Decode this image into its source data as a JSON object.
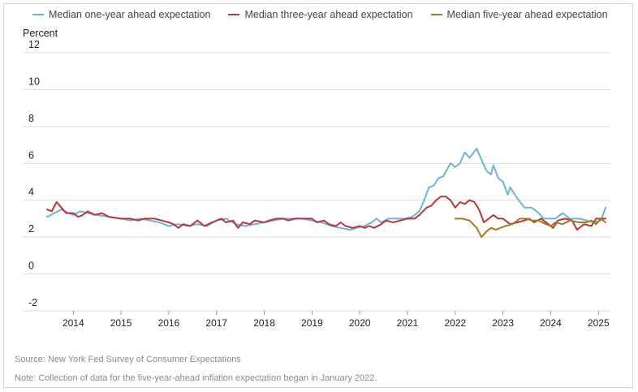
{
  "legend": {
    "one_year": "Median one-year ahead expectation",
    "three_year": "Median three-year ahead expectation",
    "five_year": "Median five-year ahead expectation"
  },
  "colors": {
    "one_year": "#6eb2d9",
    "three_year": "#b5383a",
    "five_year": "#a8781e",
    "grid": "#d9d9d9"
  },
  "footer": {
    "source": "Source: New York Fed Survey of Consumer Expectations",
    "note": "Note: Collection of data for the five-year-ahead inflation expectation began in January 2022."
  },
  "chart_data": {
    "type": "line",
    "ylabel": "Percent",
    "ylim": [
      -2,
      12
    ],
    "yticks": [
      -2,
      0,
      2,
      4,
      6,
      8,
      10,
      12
    ],
    "xticks": [
      2014,
      2015,
      2016,
      2017,
      2018,
      2019,
      2020,
      2021,
      2022,
      2023,
      2024,
      2025
    ],
    "xlim": [
      2013.4,
      2025.25
    ],
    "grid": true,
    "legend_position": "top",
    "series": [
      {
        "key": "one_year",
        "name": "Median one-year ahead expectation",
        "points": [
          [
            2013.45,
            3.1
          ],
          [
            2013.6,
            3.3
          ],
          [
            2013.75,
            3.5
          ],
          [
            2013.9,
            3.3
          ],
          [
            2014.0,
            3.2
          ],
          [
            2014.15,
            3.4
          ],
          [
            2014.3,
            3.3
          ],
          [
            2014.5,
            3.2
          ],
          [
            2014.75,
            3.1
          ],
          [
            2015.0,
            3.0
          ],
          [
            2015.2,
            2.9
          ],
          [
            2015.4,
            3.0
          ],
          [
            2015.6,
            2.9
          ],
          [
            2015.8,
            2.8
          ],
          [
            2016.0,
            2.6
          ],
          [
            2016.2,
            2.7
          ],
          [
            2016.4,
            2.6
          ],
          [
            2016.6,
            2.7
          ],
          [
            2016.8,
            2.6
          ],
          [
            2017.0,
            2.9
          ],
          [
            2017.2,
            3.0
          ],
          [
            2017.4,
            2.7
          ],
          [
            2017.6,
            2.6
          ],
          [
            2017.8,
            2.7
          ],
          [
            2018.0,
            2.8
          ],
          [
            2018.2,
            2.9
          ],
          [
            2018.4,
            3.0
          ],
          [
            2018.6,
            3.0
          ],
          [
            2018.8,
            3.0
          ],
          [
            2019.0,
            2.9
          ],
          [
            2019.2,
            2.8
          ],
          [
            2019.4,
            2.6
          ],
          [
            2019.6,
            2.5
          ],
          [
            2019.8,
            2.4
          ],
          [
            2019.95,
            2.5
          ],
          [
            2020.1,
            2.6
          ],
          [
            2020.25,
            2.8
          ],
          [
            2020.35,
            3.0
          ],
          [
            2020.45,
            2.8
          ],
          [
            2020.6,
            3.0
          ],
          [
            2020.8,
            3.0
          ],
          [
            2020.95,
            3.0
          ],
          [
            2021.1,
            3.1
          ],
          [
            2021.25,
            3.4
          ],
          [
            2021.35,
            4.0
          ],
          [
            2021.45,
            4.7
          ],
          [
            2021.55,
            4.8
          ],
          [
            2021.65,
            5.2
          ],
          [
            2021.75,
            5.3
          ],
          [
            2021.9,
            6.0
          ],
          [
            2022.0,
            5.8
          ],
          [
            2022.1,
            6.0
          ],
          [
            2022.2,
            6.6
          ],
          [
            2022.3,
            6.3
          ],
          [
            2022.45,
            6.8
          ],
          [
            2022.55,
            6.2
          ],
          [
            2022.65,
            5.6
          ],
          [
            2022.75,
            5.4
          ],
          [
            2022.8,
            5.9
          ],
          [
            2022.9,
            5.2
          ],
          [
            2023.0,
            5.0
          ],
          [
            2023.1,
            4.3
          ],
          [
            2023.15,
            4.7
          ],
          [
            2023.3,
            4.1
          ],
          [
            2023.45,
            3.6
          ],
          [
            2023.6,
            3.6
          ],
          [
            2023.75,
            3.3
          ],
          [
            2023.85,
            3.0
          ],
          [
            2024.0,
            3.0
          ],
          [
            2024.1,
            3.0
          ],
          [
            2024.25,
            3.3
          ],
          [
            2024.4,
            3.0
          ],
          [
            2024.6,
            3.0
          ],
          [
            2024.75,
            2.9
          ],
          [
            2024.9,
            2.8
          ],
          [
            2025.05,
            2.9
          ],
          [
            2025.15,
            3.6
          ]
        ]
      },
      {
        "key": "three_year",
        "name": "Median three-year ahead expectation",
        "points": [
          [
            2013.45,
            3.5
          ],
          [
            2013.55,
            3.4
          ],
          [
            2013.65,
            3.9
          ],
          [
            2013.75,
            3.6
          ],
          [
            2013.85,
            3.3
          ],
          [
            2014.0,
            3.3
          ],
          [
            2014.1,
            3.1
          ],
          [
            2014.2,
            3.2
          ],
          [
            2014.3,
            3.4
          ],
          [
            2014.45,
            3.2
          ],
          [
            2014.6,
            3.3
          ],
          [
            2014.75,
            3.1
          ],
          [
            2015.0,
            3.0
          ],
          [
            2015.2,
            3.0
          ],
          [
            2015.35,
            2.9
          ],
          [
            2015.5,
            3.0
          ],
          [
            2015.7,
            3.0
          ],
          [
            2015.85,
            2.9
          ],
          [
            2016.0,
            2.8
          ],
          [
            2016.1,
            2.7
          ],
          [
            2016.2,
            2.5
          ],
          [
            2016.3,
            2.7
          ],
          [
            2016.45,
            2.6
          ],
          [
            2016.6,
            2.9
          ],
          [
            2016.75,
            2.6
          ],
          [
            2016.9,
            2.8
          ],
          [
            2017.1,
            3.0
          ],
          [
            2017.2,
            2.8
          ],
          [
            2017.35,
            2.9
          ],
          [
            2017.45,
            2.5
          ],
          [
            2017.55,
            2.8
          ],
          [
            2017.7,
            2.7
          ],
          [
            2017.8,
            2.9
          ],
          [
            2018.0,
            2.8
          ],
          [
            2018.1,
            2.9
          ],
          [
            2018.25,
            3.0
          ],
          [
            2018.4,
            3.0
          ],
          [
            2018.5,
            2.9
          ],
          [
            2018.65,
            3.0
          ],
          [
            2018.8,
            3.0
          ],
          [
            2019.0,
            3.0
          ],
          [
            2019.1,
            2.8
          ],
          [
            2019.25,
            2.9
          ],
          [
            2019.35,
            2.7
          ],
          [
            2019.5,
            2.6
          ],
          [
            2019.6,
            2.8
          ],
          [
            2019.7,
            2.6
          ],
          [
            2019.85,
            2.5
          ],
          [
            2020.0,
            2.6
          ],
          [
            2020.1,
            2.5
          ],
          [
            2020.2,
            2.6
          ],
          [
            2020.3,
            2.5
          ],
          [
            2020.45,
            2.7
          ],
          [
            2020.55,
            2.9
          ],
          [
            2020.7,
            2.8
          ],
          [
            2020.85,
            2.9
          ],
          [
            2021.0,
            3.0
          ],
          [
            2021.15,
            3.0
          ],
          [
            2021.25,
            3.2
          ],
          [
            2021.4,
            3.6
          ],
          [
            2021.5,
            3.7
          ],
          [
            2021.6,
            4.0
          ],
          [
            2021.7,
            4.2
          ],
          [
            2021.8,
            4.2
          ],
          [
            2021.9,
            4.0
          ],
          [
            2022.0,
            3.6
          ],
          [
            2022.1,
            3.9
          ],
          [
            2022.2,
            3.8
          ],
          [
            2022.3,
            4.0
          ],
          [
            2022.4,
            3.9
          ],
          [
            2022.5,
            3.5
          ],
          [
            2022.6,
            2.8
          ],
          [
            2022.7,
            3.0
          ],
          [
            2022.8,
            3.2
          ],
          [
            2022.9,
            3.0
          ],
          [
            2023.0,
            3.0
          ],
          [
            2023.15,
            2.7
          ],
          [
            2023.3,
            2.8
          ],
          [
            2023.45,
            2.9
          ],
          [
            2023.55,
            3.0
          ],
          [
            2023.65,
            2.8
          ],
          [
            2023.8,
            3.0
          ],
          [
            2023.95,
            2.7
          ],
          [
            2024.05,
            2.5
          ],
          [
            2024.15,
            2.9
          ],
          [
            2024.3,
            3.0
          ],
          [
            2024.45,
            2.9
          ],
          [
            2024.55,
            2.4
          ],
          [
            2024.7,
            2.7
          ],
          [
            2024.85,
            2.6
          ],
          [
            2024.95,
            3.0
          ],
          [
            2025.05,
            3.0
          ],
          [
            2025.15,
            3.0
          ]
        ]
      },
      {
        "key": "five_year",
        "name": "Median five-year ahead expectation",
        "points": [
          [
            2022.0,
            3.0
          ],
          [
            2022.15,
            3.0
          ],
          [
            2022.3,
            2.9
          ],
          [
            2022.45,
            2.5
          ],
          [
            2022.55,
            2.0
          ],
          [
            2022.65,
            2.3
          ],
          [
            2022.75,
            2.5
          ],
          [
            2022.85,
            2.4
          ],
          [
            2022.95,
            2.5
          ],
          [
            2023.05,
            2.6
          ],
          [
            2023.2,
            2.7
          ],
          [
            2023.35,
            3.0
          ],
          [
            2023.5,
            3.0
          ],
          [
            2023.6,
            2.9
          ],
          [
            2023.75,
            2.9
          ],
          [
            2023.9,
            2.7
          ],
          [
            2024.0,
            2.6
          ],
          [
            2024.1,
            2.8
          ],
          [
            2024.25,
            2.7
          ],
          [
            2024.4,
            2.9
          ],
          [
            2024.6,
            2.8
          ],
          [
            2024.75,
            2.8
          ],
          [
            2024.85,
            2.9
          ],
          [
            2024.95,
            2.7
          ],
          [
            2025.05,
            3.0
          ],
          [
            2025.15,
            2.8
          ]
        ]
      }
    ]
  }
}
